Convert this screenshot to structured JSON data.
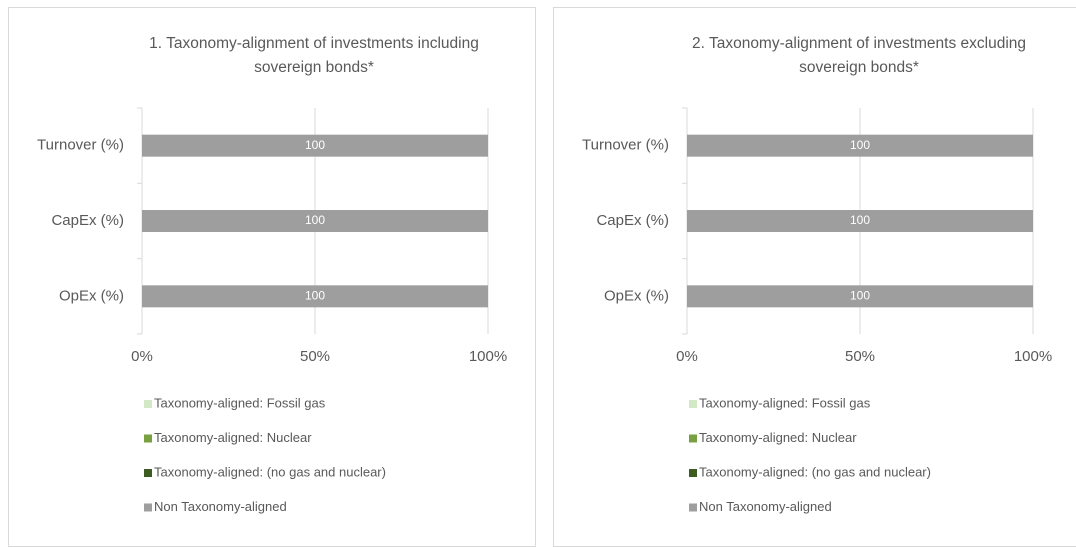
{
  "chart_data": [
    {
      "type": "bar",
      "orientation": "horizontal",
      "stacked": true,
      "title": "1. Taxonomy-alignment of investments including sovereign bonds*",
      "categories": [
        "Turnover (%)",
        "CapEx (%)",
        "OpEx (%)"
      ],
      "series": [
        {
          "name": "Taxonomy-aligned: Fossil gas",
          "color": "#d3e8c4",
          "values": [
            0,
            0,
            0
          ]
        },
        {
          "name": "Taxonomy-aligned: Nuclear",
          "color": "#78a040",
          "values": [
            0,
            0,
            0
          ]
        },
        {
          "name": "Taxonomy-aligned: (no gas and nuclear)",
          "color": "#3d5c22",
          "values": [
            0,
            0,
            0
          ]
        },
        {
          "name": "Non Taxonomy-aligned",
          "color": "#9e9e9e",
          "values": [
            100,
            100,
            100
          ]
        }
      ],
      "xlim": [
        0,
        100
      ],
      "xticks": [
        {
          "value": 0,
          "label": "0%"
        },
        {
          "value": 50,
          "label": "50%"
        },
        {
          "value": 100,
          "label": "100%"
        }
      ],
      "grid": true,
      "legend": "bottom"
    },
    {
      "type": "bar",
      "orientation": "horizontal",
      "stacked": true,
      "title": "2. Taxonomy-alignment of investments excluding sovereign bonds*",
      "categories": [
        "Turnover (%)",
        "CapEx (%)",
        "OpEx (%)"
      ],
      "series": [
        {
          "name": "Taxonomy-aligned: Fossil gas",
          "color": "#d3e8c4",
          "values": [
            0,
            0,
            0
          ]
        },
        {
          "name": "Taxonomy-aligned: Nuclear",
          "color": "#78a040",
          "values": [
            0,
            0,
            0
          ]
        },
        {
          "name": "Taxonomy-aligned: (no gas and nuclear)",
          "color": "#3d5c22",
          "values": [
            0,
            0,
            0
          ]
        },
        {
          "name": "Non Taxonomy-aligned",
          "color": "#9e9e9e",
          "values": [
            100,
            100,
            100
          ]
        }
      ],
      "xlim": [
        0,
        100
      ],
      "xticks": [
        {
          "value": 0,
          "label": "0%"
        },
        {
          "value": 50,
          "label": "50%"
        },
        {
          "value": 100,
          "label": "100%"
        }
      ],
      "grid": true,
      "legend": "bottom"
    }
  ]
}
